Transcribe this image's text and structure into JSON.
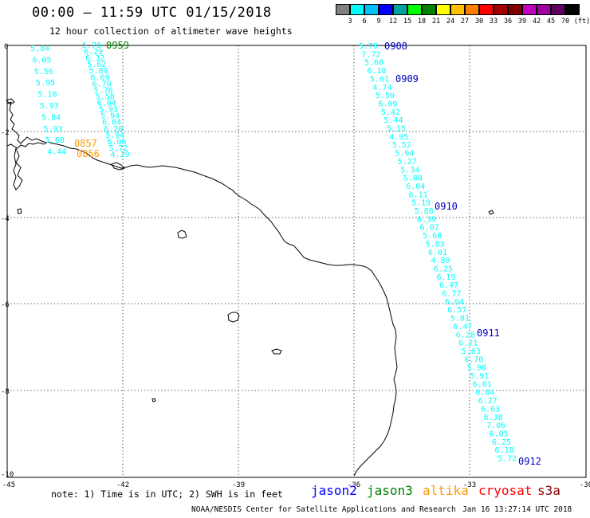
{
  "header": {
    "title": "00:00 – 11:59 UTC 01/15/2018",
    "subtitle": "12 hour collection of altimeter wave heights"
  },
  "colorbar": {
    "colors": [
      "#808080",
      "#00ffff",
      "#00c0ff",
      "#0000ff",
      "#00a0a0",
      "#00ff00",
      "#008000",
      "#ffff00",
      "#ffc000",
      "#ff8000",
      "#ff0000",
      "#a00000",
      "#800000",
      "#c000c0",
      "#a000a0",
      "#600060",
      "#000000"
    ],
    "labels": [
      "3",
      "6",
      "9",
      "12",
      "15",
      "18",
      "21",
      "24",
      "27",
      "30",
      "33",
      "36",
      "39",
      "42",
      "45",
      "70",
      "(ft)"
    ]
  },
  "axes": {
    "x_ticks": [
      "-45",
      "-42",
      "-39",
      "-36",
      "-33",
      "-30"
    ],
    "y_ticks": [
      "0",
      "-2",
      "-4",
      "-6",
      "-8",
      "-10"
    ]
  },
  "tracks": [
    {
      "color": "#00ffff",
      "values": [
        "5.84",
        "6.05",
        "5.56",
        "5.95",
        "5.10",
        "5.93",
        "5.84",
        "5.93",
        "5.68",
        "4.44"
      ]
    },
    {
      "color": "#00ffff",
      "values": [
        "5.78",
        "6.29",
        "6.32",
        "5.62",
        "5.89",
        "6.69",
        "6.79",
        "5.76",
        "5.58",
        "6.04",
        "5.93",
        "5.94",
        "6.04",
        "6.20",
        "5.94",
        "6.06",
        "5.72",
        "4.29"
      ]
    },
    {
      "color": "#00ffff",
      "values": [
        "5.78",
        "7.72",
        "5.60",
        "6.18",
        "5.61",
        "4.74",
        "5.50",
        "6.09",
        "5.42",
        "5.44",
        "5.15",
        "4.95",
        "5.52",
        "5.94",
        "5.27",
        "5.34",
        "5.88",
        "6.04",
        "6.11",
        "5.19",
        "5.88",
        "6.39",
        "6.07",
        "5.68",
        "5.83",
        "6.01",
        "4.89",
        "6.25",
        "6.19",
        "6.47",
        "6.77",
        "6.04",
        "6.57",
        "5.81",
        "6.47",
        "6.28",
        "6.21",
        "5.63",
        "6.70",
        "5.98",
        "5.91",
        "6.01",
        "6.04",
        "6.27",
        "6.63",
        "6.38",
        "7.06",
        "6.05",
        "6.25",
        "6.18",
        "5.72"
      ]
    }
  ],
  "times": [
    {
      "label": "0959",
      "color": "#008000"
    },
    {
      "label": "0908",
      "color": "#0000c0"
    },
    {
      "label": "0909",
      "color": "#0000c0"
    },
    {
      "label": "0910",
      "color": "#0000c0"
    },
    {
      "label": "0911",
      "color": "#0000c0"
    },
    {
      "label": "0912",
      "color": "#0000c0"
    },
    {
      "label": "0857",
      "color": "#ff9900"
    },
    {
      "label": "0856",
      "color": "#ff9900"
    }
  ],
  "footer": {
    "note": "note: 1) Time is in UTC; 2) SWH is in feet",
    "legend": [
      {
        "label": "jason2",
        "color": "#0000ff"
      },
      {
        "label": "jason3",
        "color": "#008000"
      },
      {
        "label": "altika",
        "color": "#ff9900"
      },
      {
        "label": "cryosat",
        "color": "#ff0000"
      },
      {
        "label": "s3a",
        "color": "#8b0000"
      }
    ],
    "credit": "NOAA/NESDIS Center for Satellite Applications and Research",
    "timestamp": "Jan 16 13:27:14 UTC 2018"
  }
}
